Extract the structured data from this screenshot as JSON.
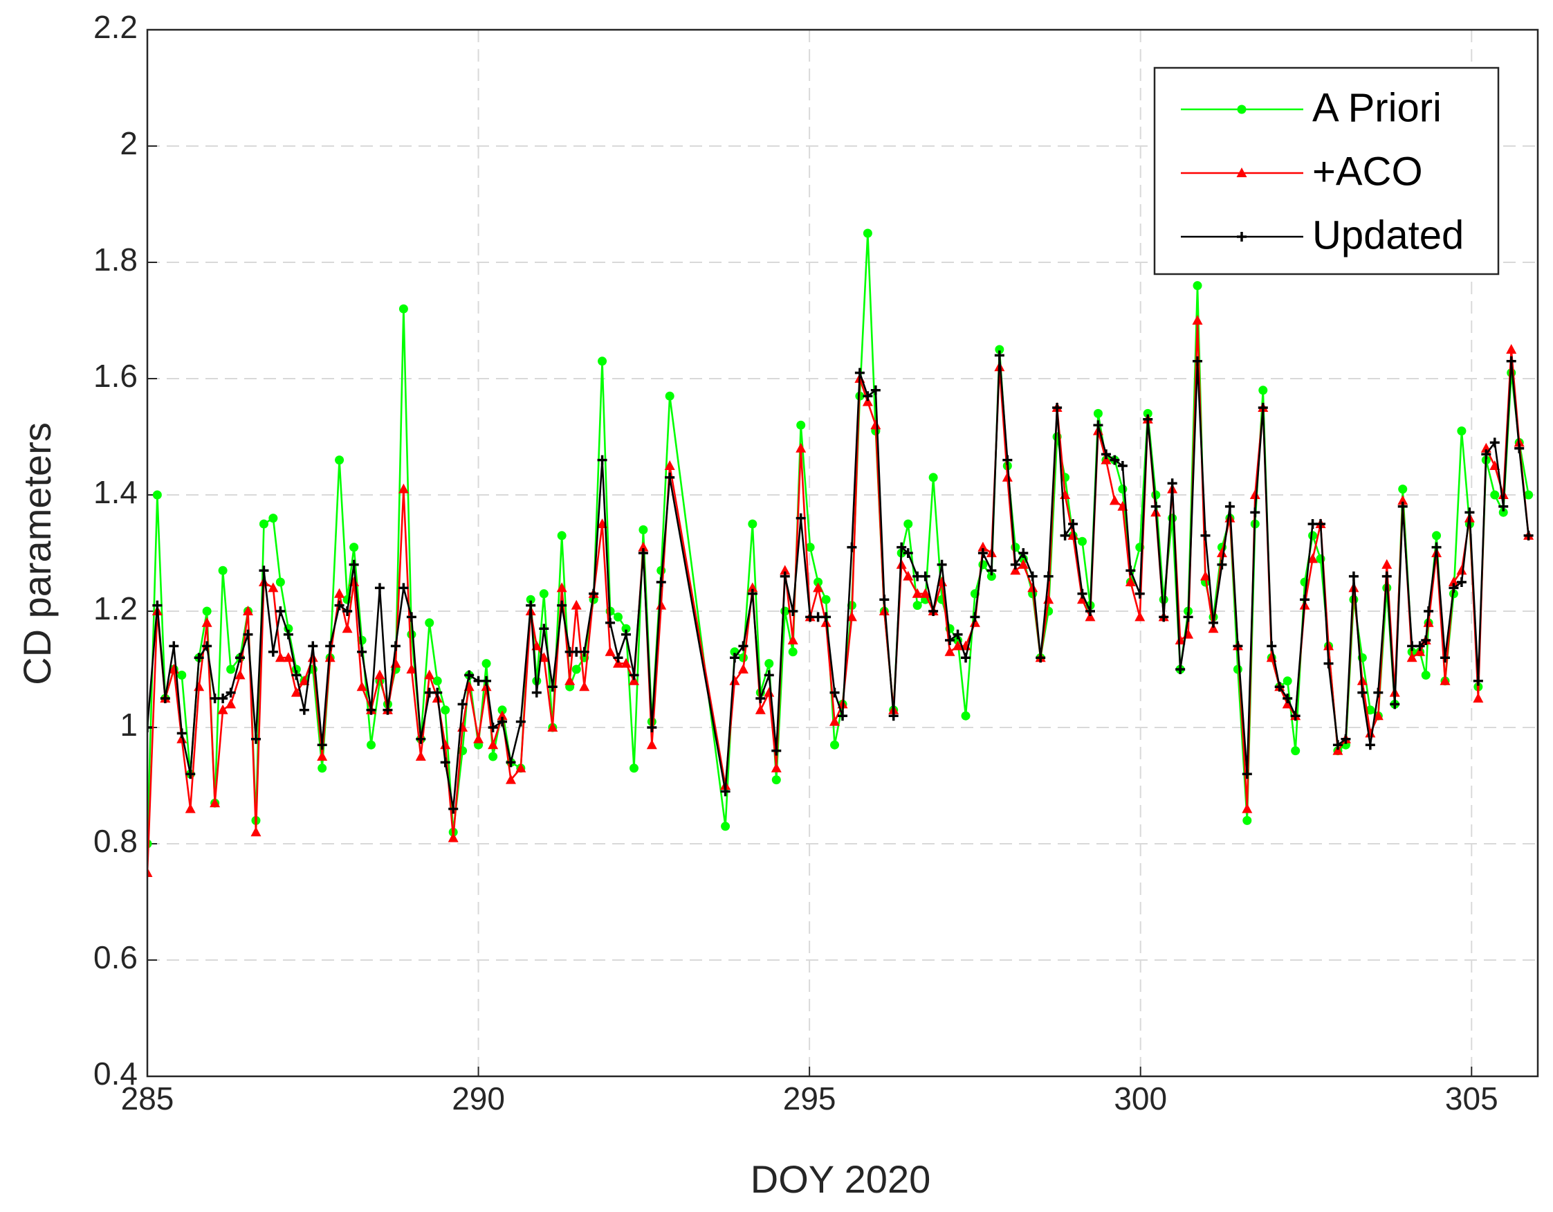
{
  "chart_data": {
    "type": "line",
    "xlabel": "DOY 2020",
    "ylabel": "CD parameters",
    "xlim": [
      285,
      306
    ],
    "ylim": [
      0.4,
      2.2
    ],
    "xticks": [
      285,
      290,
      295,
      300,
      305
    ],
    "yticks": [
      0.4,
      0.6,
      0.8,
      1,
      1.2,
      1.4,
      1.6,
      1.8,
      2,
      2.2
    ],
    "grid": true,
    "legend": "upper right",
    "x": [
      285,
      285.15,
      285.27,
      285.4,
      285.52,
      285.65,
      285.78,
      285.9,
      286.02,
      286.14,
      286.26,
      286.4,
      286.52,
      286.64,
      286.76,
      286.9,
      287.01,
      287.13,
      287.25,
      287.37,
      287.5,
      287.64,
      287.76,
      287.9,
      288.02,
      288.12,
      288.24,
      288.38,
      288.51,
      288.63,
      288.75,
      288.87,
      288.99,
      289.13,
      289.26,
      289.38,
      289.5,
      289.62,
      289.76,
      289.86,
      290.0,
      290.12,
      290.22,
      290.36,
      290.49,
      290.64,
      290.79,
      290.88,
      290.99,
      291.12,
      291.26,
      291.38,
      291.48,
      291.6,
      291.74,
      291.87,
      291.99,
      292.11,
      292.23,
      292.35,
      292.49,
      292.62,
      292.76,
      292.89,
      293.73,
      293.87,
      294.0,
      294.14,
      294.26,
      294.39,
      294.5,
      294.63,
      294.75,
      294.87,
      295.01,
      295.13,
      295.25,
      295.38,
      295.5,
      295.64,
      295.76,
      295.88,
      296.0,
      296.13,
      296.27,
      296.39,
      296.49,
      296.63,
      296.75,
      296.87,
      297.0,
      297.12,
      297.24,
      297.36,
      297.5,
      297.62,
      297.75,
      297.87,
      297.99,
      298.11,
      298.23,
      298.37,
      298.49,
      298.61,
      298.74,
      298.86,
      298.98,
      299.12,
      299.24,
      299.36,
      299.48,
      299.61,
      299.73,
      299.85,
      299.99,
      300.11,
      300.23,
      300.35,
      300.48,
      300.6,
      300.72,
      300.86,
      300.98,
      301.1,
      301.23,
      301.35,
      301.47,
      301.61,
      301.73,
      301.85,
      301.98,
      302.1,
      302.22,
      302.34,
      302.48,
      302.6,
      302.72,
      302.84,
      302.98,
      303.1,
      303.22,
      303.35,
      303.47,
      303.59,
      303.72,
      303.84,
      303.96,
      304.1,
      304.22,
      304.31,
      304.35,
      304.47,
      304.6,
      304.73,
      304.85,
      304.97,
      305.1,
      305.22,
      305.35,
      305.48,
      305.6,
      305.72,
      305.86
    ],
    "series": [
      {
        "name": "A Priori",
        "color": "#00ff00",
        "marker": "o",
        "values": [
          0.8,
          1.4,
          1.05,
          1.1,
          1.09,
          0.92,
          1.12,
          1.2,
          0.87,
          1.27,
          1.1,
          1.12,
          1.2,
          0.84,
          1.35,
          1.36,
          1.25,
          1.17,
          1.1,
          1.08,
          1.1,
          0.93,
          1.12,
          1.46,
          1.22,
          1.31,
          1.15,
          0.97,
          1.08,
          1.04,
          1.1,
          1.72,
          1.16,
          0.98,
          1.18,
          1.08,
          1.03,
          0.82,
          0.96,
          1.09,
          0.97,
          1.11,
          0.95,
          1.03,
          0.94,
          0.93,
          1.22,
          1.08,
          1.23,
          1.0,
          1.33,
          1.07,
          1.1,
          1.12,
          1.22,
          1.63,
          1.2,
          1.19,
          1.17,
          0.93,
          1.34,
          1.01,
          1.27,
          1.57,
          0.83,
          1.13,
          1.12,
          1.35,
          1.06,
          1.11,
          0.91,
          1.2,
          1.13,
          1.52,
          1.31,
          1.25,
          1.22,
          0.97,
          1.04,
          1.21,
          1.57,
          1.85,
          1.51,
          1.2,
          1.03,
          1.3,
          1.35,
          1.21,
          1.22,
          1.43,
          1.22,
          1.17,
          1.15,
          1.02,
          1.23,
          1.28,
          1.26,
          1.65,
          1.45,
          1.31,
          1.29,
          1.23,
          1.12,
          1.2,
          1.5,
          1.43,
          1.33,
          1.32,
          1.21,
          1.54,
          1.46,
          1.46,
          1.41,
          1.25,
          1.31,
          1.54,
          1.4,
          1.22,
          1.36,
          1.1,
          1.2,
          1.76,
          1.25,
          1.19,
          1.31,
          1.36,
          1.1,
          0.84,
          1.35,
          1.58,
          1.12,
          1.07,
          1.08,
          0.96,
          1.25,
          1.33,
          1.29,
          1.14,
          0.96,
          0.97,
          1.22,
          1.12,
          1.03,
          1.02,
          1.24,
          1.04,
          1.41,
          1.13,
          1.13,
          1.09,
          1.18,
          1.33,
          1.08,
          1.23,
          1.51,
          1.35,
          1.07,
          1.46,
          1.4,
          1.37,
          1.61,
          1.49,
          1.4
        ]
      },
      {
        "name": "+ACO",
        "color": "#ff0000",
        "marker": "^",
        "values": [
          0.75,
          1.2,
          1.05,
          1.1,
          0.98,
          0.86,
          1.07,
          1.18,
          0.87,
          1.03,
          1.04,
          1.09,
          1.2,
          0.82,
          1.25,
          1.24,
          1.12,
          1.12,
          1.06,
          1.08,
          1.12,
          0.95,
          1.12,
          1.23,
          1.17,
          1.25,
          1.07,
          1.03,
          1.09,
          1.03,
          1.11,
          1.41,
          1.1,
          0.95,
          1.09,
          1.05,
          0.97,
          0.81,
          1.0,
          1.07,
          0.98,
          1.07,
          0.97,
          1.02,
          0.91,
          0.93,
          1.2,
          1.14,
          1.12,
          1.0,
          1.24,
          1.08,
          1.21,
          1.07,
          1.23,
          1.35,
          1.13,
          1.11,
          1.11,
          1.08,
          1.31,
          0.97,
          1.21,
          1.45,
          0.9,
          1.08,
          1.1,
          1.24,
          1.03,
          1.06,
          0.93,
          1.27,
          1.15,
          1.48,
          1.19,
          1.24,
          1.18,
          1.01,
          1.04,
          1.19,
          1.6,
          1.56,
          1.52,
          1.2,
          1.03,
          1.28,
          1.26,
          1.23,
          1.23,
          1.2,
          1.25,
          1.13,
          1.14,
          1.14,
          1.18,
          1.31,
          1.3,
          1.62,
          1.43,
          1.27,
          1.28,
          1.24,
          1.12,
          1.22,
          1.55,
          1.4,
          1.33,
          1.22,
          1.19,
          1.51,
          1.46,
          1.39,
          1.38,
          1.25,
          1.19,
          1.53,
          1.37,
          1.19,
          1.41,
          1.15,
          1.16,
          1.7,
          1.26,
          1.17,
          1.3,
          1.36,
          1.14,
          0.86,
          1.4,
          1.55,
          1.12,
          1.07,
          1.04,
          1.02,
          1.21,
          1.29,
          1.35,
          1.14,
          0.96,
          0.98,
          1.24,
          1.08,
          0.99,
          1.02,
          1.28,
          1.06,
          1.39,
          1.12,
          1.13,
          1.15,
          1.18,
          1.3,
          1.08,
          1.25,
          1.27,
          1.36,
          1.05,
          1.48,
          1.45,
          1.4,
          1.65,
          1.49,
          1.33
        ]
      },
      {
        "name": "Updated",
        "color": "#000000",
        "marker": "+",
        "values": [
          1.0,
          1.21,
          1.05,
          1.14,
          0.99,
          0.92,
          1.12,
          1.14,
          1.05,
          1.05,
          1.06,
          1.12,
          1.16,
          0.98,
          1.27,
          1.13,
          1.2,
          1.16,
          1.09,
          1.03,
          1.14,
          0.97,
          1.14,
          1.21,
          1.2,
          1.28,
          1.13,
          1.03,
          1.24,
          1.03,
          1.14,
          1.24,
          1.19,
          0.98,
          1.06,
          1.06,
          0.94,
          0.86,
          1.04,
          1.09,
          1.08,
          1.08,
          1.0,
          1.01,
          0.94,
          1.01,
          1.21,
          1.06,
          1.17,
          1.07,
          1.21,
          1.13,
          1.13,
          1.13,
          1.23,
          1.46,
          1.18,
          1.12,
          1.16,
          1.09,
          1.3,
          1.0,
          1.25,
          1.43,
          0.89,
          1.12,
          1.14,
          1.23,
          1.05,
          1.09,
          0.96,
          1.26,
          1.2,
          1.36,
          1.19,
          1.19,
          1.19,
          1.06,
          1.02,
          1.31,
          1.61,
          1.57,
          1.58,
          1.22,
          1.02,
          1.31,
          1.3,
          1.26,
          1.26,
          1.2,
          1.28,
          1.15,
          1.16,
          1.12,
          1.19,
          1.3,
          1.27,
          1.64,
          1.46,
          1.28,
          1.3,
          1.26,
          1.12,
          1.26,
          1.55,
          1.33,
          1.35,
          1.23,
          1.2,
          1.52,
          1.47,
          1.46,
          1.45,
          1.27,
          1.23,
          1.53,
          1.38,
          1.19,
          1.42,
          1.1,
          1.19,
          1.63,
          1.33,
          1.18,
          1.28,
          1.38,
          1.14,
          0.92,
          1.37,
          1.55,
          1.14,
          1.07,
          1.05,
          1.02,
          1.22,
          1.35,
          1.35,
          1.11,
          0.97,
          0.98,
          1.26,
          1.06,
          0.97,
          1.06,
          1.26,
          1.04,
          1.38,
          1.14,
          1.14,
          1.15,
          1.2,
          1.31,
          1.12,
          1.24,
          1.25,
          1.37,
          1.08,
          1.47,
          1.49,
          1.38,
          1.63,
          1.48,
          1.33
        ]
      }
    ]
  }
}
